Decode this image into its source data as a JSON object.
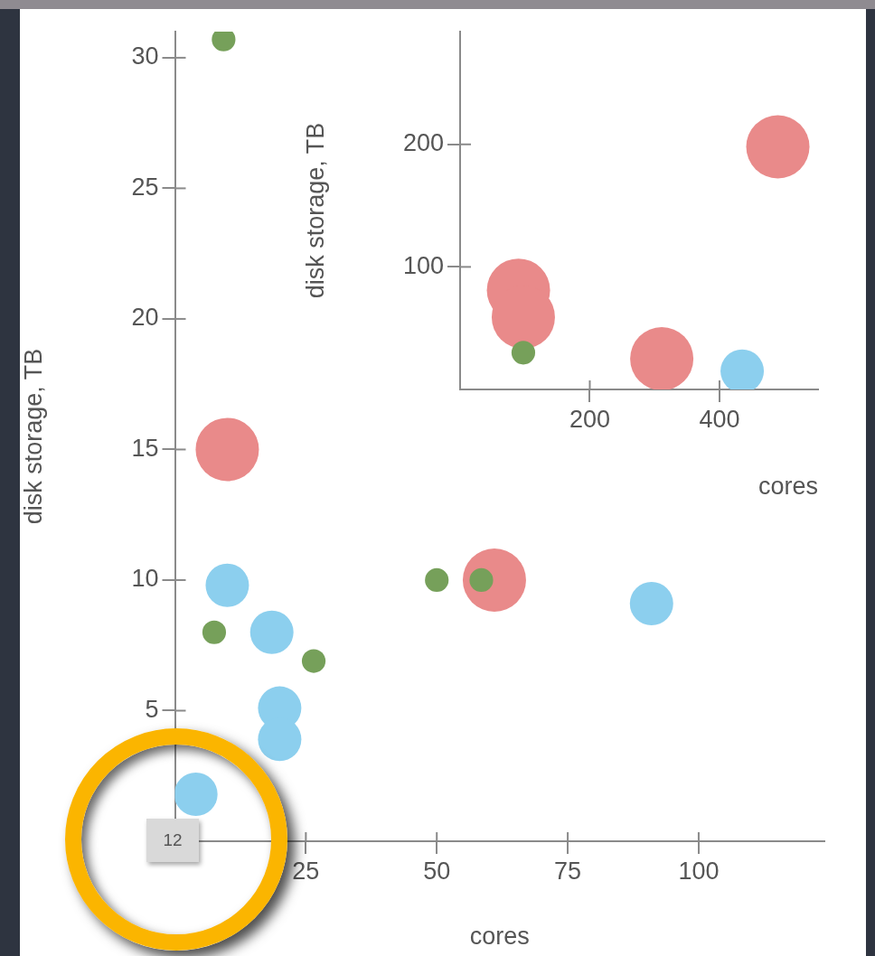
{
  "chart_data": [
    {
      "type": "bubble",
      "xlabel": "cores",
      "ylabel": "disk storage, TB",
      "xlim": [
        0,
        124
      ],
      "ylim": [
        0,
        31
      ],
      "xticks": [
        25,
        50,
        75,
        100
      ],
      "yticks": [
        5,
        10,
        15,
        20,
        25,
        30
      ],
      "grid": false,
      "legend": false,
      "annotations": [
        "12"
      ],
      "series": [
        {
          "color": "#e98a8a",
          "x": [
            10,
            61
          ],
          "values": [
            15,
            10
          ],
          "sizes": [
            1,
            1
          ]
        },
        {
          "color": "#8ccfee",
          "x": [
            10,
            18.5,
            91,
            20,
            20,
            4
          ],
          "values": [
            9.8,
            8,
            9.1,
            5.1,
            3.9,
            1.8
          ],
          "sizes": [
            0.47,
            0.47,
            0.47,
            0.47,
            0.47,
            0.47
          ]
        },
        {
          "color": "#76a05a",
          "x": [
            9.3,
            7.5,
            50,
            58.5,
            26.5
          ],
          "values": [
            30.7,
            8,
            10,
            10,
            6.9
          ],
          "sizes": [
            0.14,
            0.14,
            0.14,
            0.14,
            0.14
          ]
        }
      ]
    },
    {
      "type": "bubble",
      "xlabel": "cores",
      "ylabel": "disk storage, TB",
      "xlim": [
        0,
        552
      ],
      "ylim": [
        0,
        292
      ],
      "xticks": [
        200,
        400
      ],
      "yticks": [
        100,
        200
      ],
      "grid": false,
      "legend": false,
      "series": [
        {
          "color": "#e98a8a",
          "x": [
            490,
            90,
            97.5,
            311
          ],
          "values": [
            198,
            81,
            59,
            25
          ],
          "sizes": [
            1,
            1,
            1,
            1
          ]
        },
        {
          "color": "#8ccfee",
          "x": [
            435
          ],
          "values": [
            15
          ],
          "sizes": [
            0.47
          ]
        },
        {
          "color": "#76a05a",
          "x": [
            97.5
          ],
          "values": [
            30
          ],
          "sizes": [
            0.14
          ]
        }
      ]
    }
  ]
}
